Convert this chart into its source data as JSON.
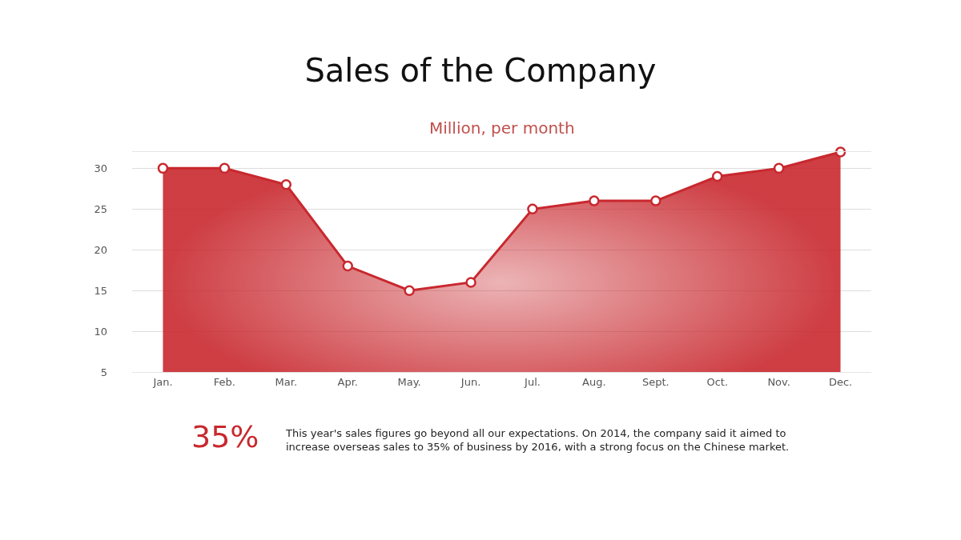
{
  "chart_data": {
    "type": "area",
    "title": "Sales of the Company",
    "subtitle": "Million, per month",
    "categories": [
      "Jan.",
      "Feb.",
      "Mar.",
      "Apr.",
      "May.",
      "Jun.",
      "Jul.",
      "Aug.",
      "Sept.",
      "Oct.",
      "Nov.",
      "Dec."
    ],
    "series": [
      {
        "color": "#c8282e",
        "values": [
          30,
          30,
          28,
          18,
          15,
          16,
          25,
          26,
          26,
          29,
          30,
          32
        ]
      }
    ],
    "ylim": [
      5,
      32
    ],
    "yticks": [
      5,
      10,
      15,
      20,
      25,
      30
    ],
    "grid": "y",
    "marker": "circle",
    "line_style": "solid",
    "annotations": [
      "35%",
      "This year's sales figures go beyond all our expectations. On 2014, the company said it aimed to increase overseas sales to 35% of business by 2016, with a strong focus on the Chinese market."
    ]
  }
}
